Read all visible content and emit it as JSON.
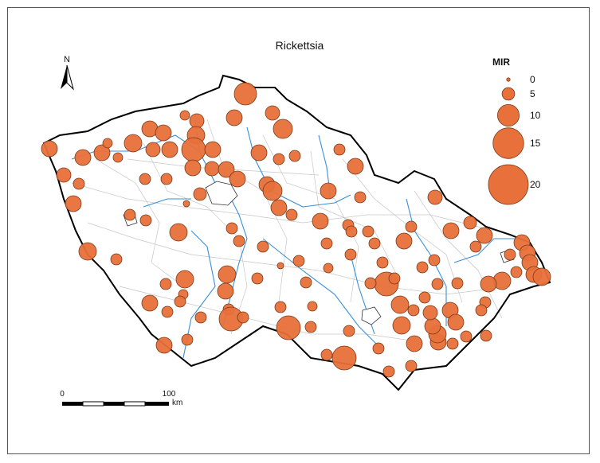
{
  "title": "Rickettsia",
  "north_label": "N",
  "legend": {
    "title": "MIR",
    "entries": [
      {
        "label": "0",
        "value": 0
      },
      {
        "label": "5",
        "value": 5
      },
      {
        "label": "10",
        "value": 10
      },
      {
        "label": "15",
        "value": 15
      },
      {
        "label": "20",
        "value": 20
      }
    ]
  },
  "scale_bar": {
    "labels": [
      "0",
      "100"
    ],
    "unit": "km"
  },
  "colors": {
    "marker_fill": "#E8703A",
    "marker_stroke": "#7a3a18",
    "border": "#000000",
    "district": "#bdbdbd",
    "river": "#3a8fd6"
  }
}
